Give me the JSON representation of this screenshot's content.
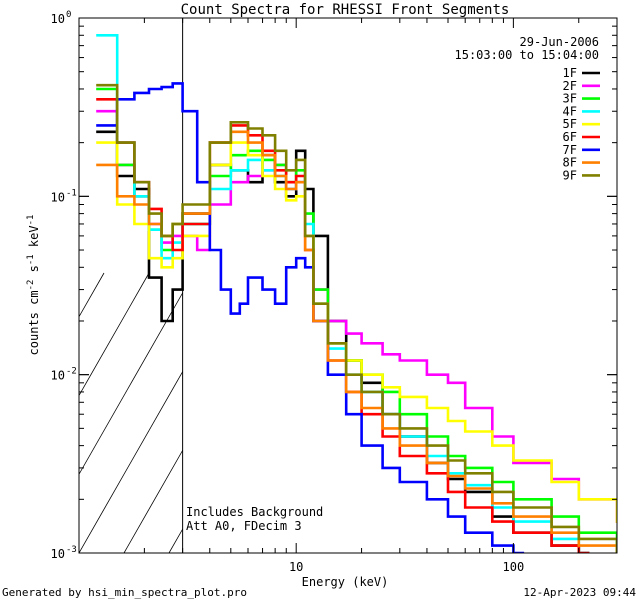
{
  "chart_data": {
    "type": "line",
    "title": "Count Spectra for RHESSI Front Segments",
    "xlabel": "Energy (keV)",
    "ylabel_parts": [
      "counts cm",
      "-2",
      " s",
      "-1",
      " keV",
      "-1"
    ],
    "xscale": "log",
    "yscale": "log",
    "xlim": [
      1,
      300
    ],
    "ylim": [
      0.001,
      1
    ],
    "x_tick_labels": [
      {
        "value": 10,
        "label": "10"
      },
      {
        "value": 100,
        "label": "100"
      }
    ],
    "y_tick_labels": [
      {
        "value": 1,
        "mantissa": "10",
        "exp": "0"
      },
      {
        "value": 0.1,
        "mantissa": "10",
        "exp": "-1"
      },
      {
        "value": 0.01,
        "mantissa": "10",
        "exp": "-2"
      },
      {
        "value": 0.001,
        "mantissa": "10",
        "exp": "-3"
      }
    ],
    "date": "29-Jun-2006",
    "time_range": "15:03:00 to 15:04:00",
    "annotations": [
      "Includes Background",
      "Att A0, FDecim 3"
    ],
    "hatched_region_kev": [
      1,
      3
    ],
    "series": [
      {
        "name": "1F",
        "color": "#000000",
        "points": [
          [
            1.2,
            0.23
          ],
          [
            1.5,
            0.13
          ],
          [
            1.8,
            0.11
          ],
          [
            2.1,
            0.035
          ],
          [
            2.4,
            0.02
          ],
          [
            2.7,
            0.03
          ],
          [
            3,
            0.08
          ],
          [
            4,
            0.15
          ],
          [
            5,
            0.14
          ],
          [
            6,
            0.12
          ],
          [
            7,
            0.17
          ],
          [
            8,
            0.12
          ],
          [
            9,
            0.1
          ],
          [
            10,
            0.18
          ],
          [
            11,
            0.11
          ],
          [
            12,
            0.06
          ],
          [
            14,
            0.02
          ],
          [
            17,
            0.012
          ],
          [
            20,
            0.009
          ],
          [
            25,
            0.006
          ],
          [
            30,
            0.0045
          ],
          [
            40,
            0.0032
          ],
          [
            50,
            0.0026
          ],
          [
            60,
            0.0022
          ],
          [
            80,
            0.0016
          ],
          [
            100,
            0.0013
          ],
          [
            150,
            0.0011
          ],
          [
            200,
            0.001
          ]
        ]
      },
      {
        "name": "2F",
        "color": "#ff00ff",
        "points": [
          [
            1.2,
            0.3
          ],
          [
            1.5,
            0.15
          ],
          [
            1.8,
            0.1
          ],
          [
            2.1,
            0.07
          ],
          [
            2.4,
            0.055
          ],
          [
            2.7,
            0.06
          ],
          [
            3,
            0.06
          ],
          [
            3.5,
            0.05
          ],
          [
            4,
            0.09
          ],
          [
            5,
            0.12
          ],
          [
            6,
            0.13
          ],
          [
            7,
            0.14
          ],
          [
            8,
            0.15
          ],
          [
            9,
            0.11
          ],
          [
            10,
            0.12
          ],
          [
            11,
            0.06
          ],
          [
            12,
            0.03
          ],
          [
            14,
            0.02
          ],
          [
            17,
            0.017
          ],
          [
            20,
            0.015
          ],
          [
            25,
            0.013
          ],
          [
            30,
            0.012
          ],
          [
            40,
            0.01
          ],
          [
            50,
            0.009
          ],
          [
            60,
            0.0065
          ],
          [
            80,
            0.0045
          ],
          [
            100,
            0.0032
          ],
          [
            150,
            0.0026
          ],
          [
            200,
            0.002
          ],
          [
            300,
            0.0015
          ]
        ]
      },
      {
        "name": "3F",
        "color": "#00ff00",
        "points": [
          [
            1.2,
            0.4
          ],
          [
            1.5,
            0.15
          ],
          [
            1.8,
            0.1
          ],
          [
            2.1,
            0.065
          ],
          [
            2.4,
            0.05
          ],
          [
            2.7,
            0.07
          ],
          [
            3,
            0.07
          ],
          [
            4,
            0.13
          ],
          [
            5,
            0.17
          ],
          [
            6,
            0.18
          ],
          [
            7,
            0.16
          ],
          [
            8,
            0.15
          ],
          [
            9,
            0.12
          ],
          [
            10,
            0.14
          ],
          [
            11,
            0.08
          ],
          [
            12,
            0.03
          ],
          [
            14,
            0.015
          ],
          [
            17,
            0.012
          ],
          [
            20,
            0.01
          ],
          [
            25,
            0.008
          ],
          [
            30,
            0.006
          ],
          [
            40,
            0.0045
          ],
          [
            50,
            0.0035
          ],
          [
            60,
            0.003
          ],
          [
            80,
            0.0025
          ],
          [
            100,
            0.002
          ],
          [
            150,
            0.0016
          ],
          [
            200,
            0.0013
          ],
          [
            300,
            0.001
          ]
        ]
      },
      {
        "name": "4F",
        "color": "#00ffff",
        "points": [
          [
            1.2,
            0.8
          ],
          [
            1.5,
            0.2
          ],
          [
            1.8,
            0.1
          ],
          [
            2.1,
            0.065
          ],
          [
            2.4,
            0.045
          ],
          [
            2.7,
            0.055
          ],
          [
            3,
            0.07
          ],
          [
            4,
            0.11
          ],
          [
            5,
            0.14
          ],
          [
            6,
            0.16
          ],
          [
            7,
            0.14
          ],
          [
            8,
            0.13
          ],
          [
            9,
            0.11
          ],
          [
            10,
            0.12
          ],
          [
            11,
            0.07
          ],
          [
            12,
            0.025
          ],
          [
            14,
            0.014
          ],
          [
            17,
            0.01
          ],
          [
            20,
            0.008
          ],
          [
            25,
            0.006
          ],
          [
            30,
            0.0045
          ],
          [
            40,
            0.0035
          ],
          [
            50,
            0.0028
          ],
          [
            60,
            0.0024
          ],
          [
            80,
            0.0018
          ],
          [
            100,
            0.0015
          ],
          [
            150,
            0.0012
          ],
          [
            200,
            0.001
          ]
        ]
      },
      {
        "name": "5F",
        "color": "#ffff00",
        "points": [
          [
            1.2,
            0.2
          ],
          [
            1.5,
            0.09
          ],
          [
            1.8,
            0.07
          ],
          [
            2.1,
            0.045
          ],
          [
            2.4,
            0.04
          ],
          [
            2.7,
            0.045
          ],
          [
            3,
            0.06
          ],
          [
            4,
            0.15
          ],
          [
            5,
            0.2
          ],
          [
            6,
            0.17
          ],
          [
            7,
            0.13
          ],
          [
            8,
            0.11
          ],
          [
            9,
            0.095
          ],
          [
            10,
            0.1
          ],
          [
            11,
            0.06
          ],
          [
            12,
            0.025
          ],
          [
            14,
            0.015
          ],
          [
            17,
            0.012
          ],
          [
            20,
            0.01
          ],
          [
            25,
            0.0085
          ],
          [
            30,
            0.0075
          ],
          [
            40,
            0.0065
          ],
          [
            50,
            0.0055
          ],
          [
            60,
            0.0048
          ],
          [
            80,
            0.004
          ],
          [
            100,
            0.0033
          ],
          [
            150,
            0.0025
          ],
          [
            200,
            0.002
          ],
          [
            300,
            0.0015
          ]
        ]
      },
      {
        "name": "6F",
        "color": "#ff0000",
        "points": [
          [
            1.2,
            0.35
          ],
          [
            1.5,
            0.2
          ],
          [
            1.8,
            0.12
          ],
          [
            2.1,
            0.085
          ],
          [
            2.4,
            0.06
          ],
          [
            2.7,
            0.05
          ],
          [
            3,
            0.07
          ],
          [
            4,
            0.2
          ],
          [
            5,
            0.25
          ],
          [
            6,
            0.22
          ],
          [
            7,
            0.18
          ],
          [
            8,
            0.14
          ],
          [
            9,
            0.12
          ],
          [
            10,
            0.13
          ],
          [
            11,
            0.05
          ],
          [
            12,
            0.02
          ],
          [
            14,
            0.012
          ],
          [
            17,
            0.008
          ],
          [
            20,
            0.006
          ],
          [
            25,
            0.0045
          ],
          [
            30,
            0.0035
          ],
          [
            40,
            0.0028
          ],
          [
            50,
            0.0022
          ],
          [
            60,
            0.0018
          ],
          [
            80,
            0.0015
          ],
          [
            100,
            0.0013
          ],
          [
            150,
            0.0011
          ],
          [
            200,
            0.001
          ]
        ]
      },
      {
        "name": "7F",
        "color": "#0000ff",
        "points": [
          [
            1.2,
            0.25
          ],
          [
            1.5,
            0.35
          ],
          [
            1.8,
            0.38
          ],
          [
            2.1,
            0.4
          ],
          [
            2.4,
            0.41
          ],
          [
            2.7,
            0.43
          ],
          [
            3,
            0.3
          ],
          [
            3.5,
            0.12
          ],
          [
            4,
            0.05
          ],
          [
            4.5,
            0.03
          ],
          [
            5,
            0.022
          ],
          [
            5.5,
            0.025
          ],
          [
            6,
            0.035
          ],
          [
            7,
            0.03
          ],
          [
            8,
            0.025
          ],
          [
            9,
            0.04
          ],
          [
            10,
            0.045
          ],
          [
            11,
            0.04
          ],
          [
            12,
            0.02
          ],
          [
            14,
            0.01
          ],
          [
            17,
            0.006
          ],
          [
            20,
            0.004
          ],
          [
            25,
            0.003
          ],
          [
            30,
            0.0025
          ],
          [
            40,
            0.002
          ],
          [
            50,
            0.0016
          ],
          [
            60,
            0.0013
          ],
          [
            80,
            0.0011
          ],
          [
            100,
            0.001
          ]
        ]
      },
      {
        "name": "8F",
        "color": "#ff8000",
        "points": [
          [
            1.2,
            0.15
          ],
          [
            1.5,
            0.1
          ],
          [
            1.8,
            0.09
          ],
          [
            2.1,
            0.07
          ],
          [
            2.4,
            0.06
          ],
          [
            2.7,
            0.07
          ],
          [
            3,
            0.08
          ],
          [
            4,
            0.2
          ],
          [
            5,
            0.23
          ],
          [
            6,
            0.2
          ],
          [
            7,
            0.17
          ],
          [
            8,
            0.13
          ],
          [
            9,
            0.11
          ],
          [
            10,
            0.12
          ],
          [
            11,
            0.05
          ],
          [
            12,
            0.02
          ],
          [
            14,
            0.012
          ],
          [
            17,
            0.008
          ],
          [
            20,
            0.0065
          ],
          [
            25,
            0.005
          ],
          [
            30,
            0.004
          ],
          [
            40,
            0.0032
          ],
          [
            50,
            0.0027
          ],
          [
            60,
            0.0023
          ],
          [
            80,
            0.0019
          ],
          [
            100,
            0.0016
          ],
          [
            150,
            0.0013
          ],
          [
            200,
            0.0011
          ],
          [
            300,
            0.001
          ]
        ]
      },
      {
        "name": "9F",
        "color": "#808000",
        "points": [
          [
            1.2,
            0.42
          ],
          [
            1.5,
            0.2
          ],
          [
            1.8,
            0.12
          ],
          [
            2.1,
            0.08
          ],
          [
            2.4,
            0.06
          ],
          [
            2.7,
            0.07
          ],
          [
            3,
            0.09
          ],
          [
            4,
            0.2
          ],
          [
            5,
            0.26
          ],
          [
            6,
            0.24
          ],
          [
            7,
            0.22
          ],
          [
            8,
            0.18
          ],
          [
            9,
            0.14
          ],
          [
            10,
            0.16
          ],
          [
            11,
            0.06
          ],
          [
            12,
            0.025
          ],
          [
            14,
            0.015
          ],
          [
            17,
            0.01
          ],
          [
            20,
            0.008
          ],
          [
            25,
            0.006
          ],
          [
            30,
            0.005
          ],
          [
            40,
            0.004
          ],
          [
            50,
            0.0033
          ],
          [
            60,
            0.0028
          ],
          [
            80,
            0.0022
          ],
          [
            100,
            0.0018
          ],
          [
            150,
            0.0014
          ],
          [
            200,
            0.0012
          ],
          [
            300,
            0.001
          ]
        ]
      }
    ]
  },
  "footer": {
    "left": "Generated by hsi_min_spectra_plot.pro",
    "right": "12-Apr-2023 09:44"
  }
}
